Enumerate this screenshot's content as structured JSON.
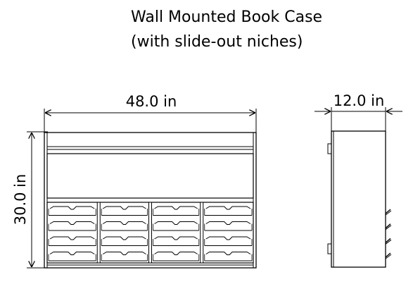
{
  "title": {
    "line1": "Wall Mounted Book Case",
    "line2": "(with slide-out niches)"
  },
  "dimensions": {
    "width": "48.0 in",
    "height": "30.0 in",
    "depth": "12.0 in"
  },
  "views": {
    "front": {
      "columns": 4,
      "rows": 4
    },
    "side": {
      "brackets": 4
    }
  },
  "colors": {
    "line": "#000000",
    "background": "#ffffff"
  }
}
